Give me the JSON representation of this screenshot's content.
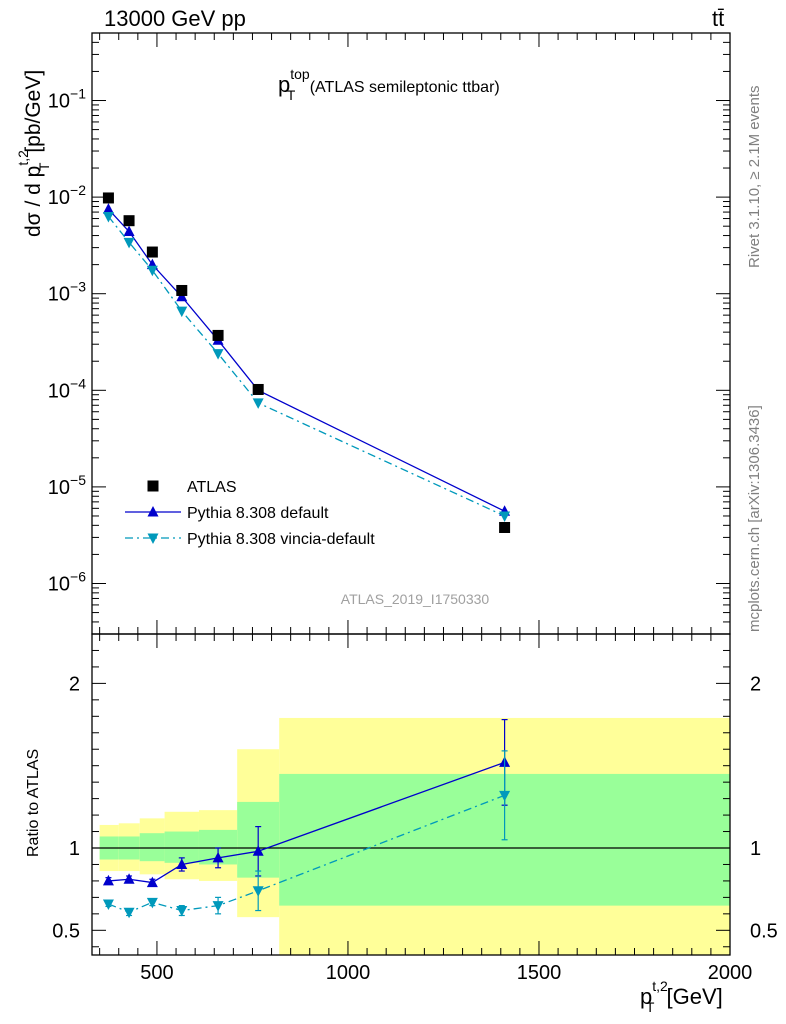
{
  "header": {
    "energy_label": "13000 GeV pp",
    "process_label": "tt̄"
  },
  "side_labels": {
    "rivet": "Rivet 3.1.10, ≥ 2.1M events",
    "mcplots": "mcplots.cern.ch [arXiv:1306.3436]"
  },
  "colors": {
    "data": "#000000",
    "pythia_default": "#0000cc",
    "pythia_vincia": "#0099bb",
    "band_inner": "#99ff99",
    "band_outer": "#ffff99"
  },
  "chart_data": [
    {
      "type": "line",
      "title_main": "p",
      "title_sup": "top",
      "title_sub": "T",
      "title_rest": "(ATLAS semileptonic ttbar)",
      "analysis_id": "ATLAS_2019_I1750330",
      "ylabel": "dσ / d p",
      "ylabel_sup": "t,2",
      "ylabel_sub": "T",
      "ylabel_unit": "[pb/GeV]",
      "yscale": "log",
      "xlim": [
        330,
        2000
      ],
      "ylim": [
        3e-07,
        0.5
      ],
      "yticks": [
        {
          "value": 1e-06,
          "base": "10",
          "exp": "−6"
        },
        {
          "value": 1e-05,
          "base": "10",
          "exp": "−5"
        },
        {
          "value": 0.0001,
          "base": "10",
          "exp": "−4"
        },
        {
          "value": 0.001,
          "base": "10",
          "exp": "−3"
        },
        {
          "value": 0.01,
          "base": "10",
          "exp": "−2"
        },
        {
          "value": 0.1,
          "base": "10",
          "exp": "−1"
        }
      ],
      "legend_position": "bottom-left",
      "series": [
        {
          "name": "ATLAS",
          "marker": "square",
          "x": [
            373,
            427,
            488,
            565,
            660,
            765,
            1410
          ],
          "y": [
            0.0098,
            0.0057,
            0.0027,
            0.00108,
            0.00037,
            0.000102,
            3.8e-06
          ]
        },
        {
          "name": "Pythia 8.308 default",
          "marker": "triangle-up",
          "style": "solid",
          "x": [
            373,
            427,
            488,
            565,
            660,
            765,
            1410
          ],
          "y": [
            0.0075,
            0.0044,
            0.002,
            0.00093,
            0.00033,
            0.0001,
            5.6e-06
          ]
        },
        {
          "name": "Pythia 8.308 vincia-default",
          "marker": "triangle-down",
          "style": "dashdot",
          "x": [
            373,
            427,
            488,
            565,
            660,
            765,
            1410
          ],
          "y": [
            0.0063,
            0.0034,
            0.00175,
            0.00066,
            0.00024,
            7.4e-05,
            5e-06
          ]
        }
      ]
    },
    {
      "type": "line",
      "ylabel": "Ratio to ATLAS",
      "xlabel": "p",
      "xlabel_sup": "t,2",
      "xlabel_sub": "T",
      "xlabel_unit": "[GeV]",
      "xlim": [
        330,
        2000
      ],
      "ylim": [
        0.35,
        2.3
      ],
      "xticks": [
        500,
        1000,
        1500,
        2000
      ],
      "yticks": [
        0.5,
        1,
        2
      ],
      "bins": [
        {
          "lo": 350,
          "hi": 400,
          "inner": [
            0.93,
            1.07
          ],
          "outer": [
            0.86,
            1.14
          ]
        },
        {
          "lo": 400,
          "hi": 455,
          "inner": [
            0.93,
            1.07
          ],
          "outer": [
            0.86,
            1.15
          ]
        },
        {
          "lo": 455,
          "hi": 520,
          "inner": [
            0.92,
            1.09
          ],
          "outer": [
            0.84,
            1.18
          ]
        },
        {
          "lo": 520,
          "hi": 610,
          "inner": [
            0.91,
            1.1
          ],
          "outer": [
            0.81,
            1.22
          ]
        },
        {
          "lo": 610,
          "hi": 710,
          "inner": [
            0.9,
            1.11
          ],
          "outer": [
            0.8,
            1.23
          ]
        },
        {
          "lo": 710,
          "hi": 820,
          "inner": [
            0.82,
            1.28
          ],
          "outer": [
            0.58,
            1.6
          ]
        },
        {
          "lo": 820,
          "hi": 2000,
          "inner": [
            0.65,
            1.45
          ],
          "outer": [
            0.35,
            1.79
          ]
        }
      ],
      "series": [
        {
          "name": "Pythia 8.308 default",
          "style": "solid",
          "x": [
            373,
            427,
            488,
            565,
            660,
            765,
            1410
          ],
          "y": [
            0.8,
            0.81,
            0.79,
            0.9,
            0.94,
            0.98,
            1.52
          ],
          "err": [
            0.02,
            0.02,
            0.02,
            0.04,
            0.06,
            0.15,
            0.26
          ]
        },
        {
          "name": "Pythia 8.308 vincia-default",
          "style": "dashdot",
          "x": [
            373,
            427,
            488,
            565,
            660,
            765,
            1410
          ],
          "y": [
            0.66,
            0.61,
            0.67,
            0.62,
            0.65,
            0.74,
            1.32
          ],
          "err": [
            0.015,
            0.02,
            0.02,
            0.03,
            0.05,
            0.12,
            0.27
          ]
        }
      ]
    }
  ]
}
